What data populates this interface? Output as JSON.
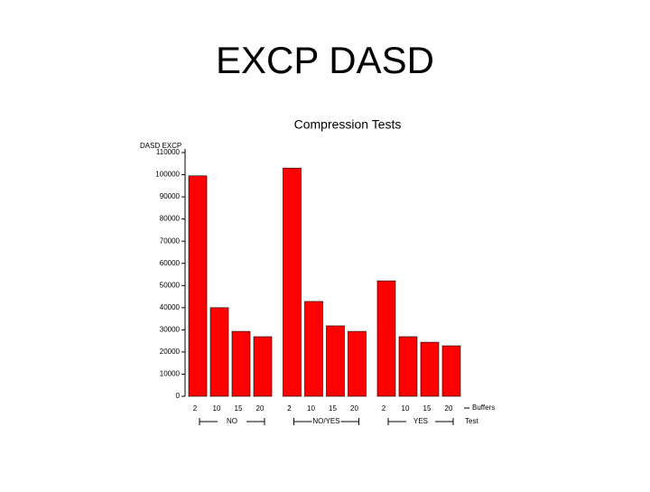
{
  "slide_title": "EXCP DASD",
  "chart_data": {
    "type": "bar",
    "title": "Compression Tests",
    "y_label": "DASD EXCP",
    "x_label": "Buffers",
    "group_label": "Test",
    "color": "#ff0000",
    "groups": [
      {
        "name": "NO",
        "categories": [
          "2",
          "10",
          "15",
          "20"
        ],
        "values": [
          99500,
          40000,
          29300,
          26900
        ]
      },
      {
        "name": "NO/YES",
        "categories": [
          "2",
          "10",
          "15",
          "20"
        ],
        "values": [
          103000,
          42800,
          31800,
          29300
        ]
      },
      {
        "name": "YES",
        "categories": [
          "2",
          "10",
          "15",
          "20"
        ],
        "values": [
          52100,
          26900,
          24400,
          22800
        ]
      }
    ],
    "ylim": [
      0,
      110000
    ],
    "yticks": [
      0,
      10000,
      20000,
      30000,
      40000,
      50000,
      60000,
      70000,
      80000,
      90000,
      100000,
      110000
    ]
  }
}
